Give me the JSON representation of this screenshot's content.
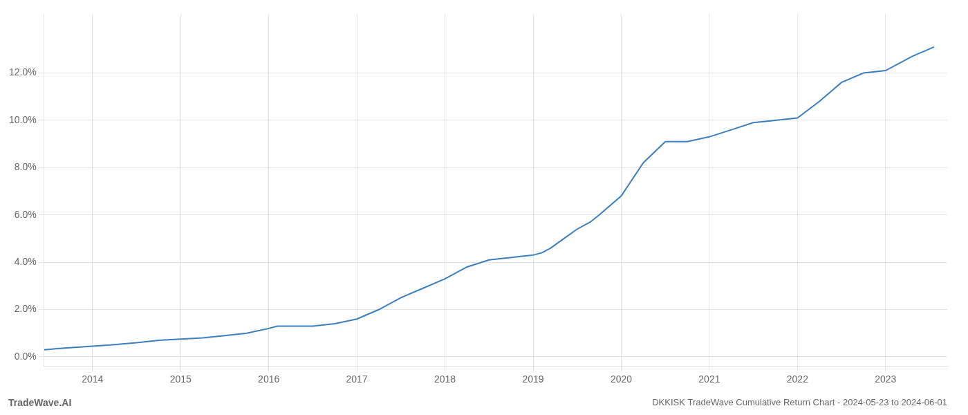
{
  "chart_data": {
    "type": "line",
    "title": "DKKISK TradeWave Cumulative Return Chart - 2024-05-23 to 2024-06-01",
    "annotations": [
      "TradeWave.AI"
    ],
    "color": "#3a7ebf",
    "x": [
      2013.45,
      2013.6,
      2013.8,
      2014.0,
      2014.2,
      2014.5,
      2014.75,
      2015.0,
      2015.25,
      2015.5,
      2015.75,
      2016.0,
      2016.1,
      2016.25,
      2016.5,
      2016.75,
      2017.0,
      2017.25,
      2017.5,
      2017.75,
      2018.0,
      2018.25,
      2018.5,
      2018.75,
      2019.0,
      2019.1,
      2019.2,
      2019.35,
      2019.5,
      2019.65,
      2019.75,
      2020.0,
      2020.25,
      2020.5,
      2020.75,
      2021.0,
      2021.25,
      2021.5,
      2021.75,
      2022.0,
      2022.25,
      2022.5,
      2022.75,
      2023.0,
      2023.3,
      2023.55
    ],
    "values": [
      0.003,
      0.0035,
      0.004,
      0.0045,
      0.005,
      0.006,
      0.007,
      0.0075,
      0.008,
      0.009,
      0.01,
      0.012,
      0.013,
      0.013,
      0.013,
      0.014,
      0.016,
      0.02,
      0.025,
      0.029,
      0.033,
      0.038,
      0.041,
      0.042,
      0.043,
      0.044,
      0.046,
      0.05,
      0.054,
      0.057,
      0.06,
      0.068,
      0.082,
      0.091,
      0.091,
      0.093,
      0.096,
      0.099,
      0.1,
      0.101,
      0.108,
      0.116,
      0.12,
      0.121,
      0.127,
      0.131
    ],
    "xlim": [
      2013.45,
      2023.7
    ],
    "ylim": [
      -0.004,
      0.145
    ],
    "xticks": [
      2014,
      2015,
      2016,
      2017,
      2018,
      2019,
      2020,
      2021,
      2022,
      2023
    ],
    "yticks": [
      {
        "value": 0.0,
        "label": "0.0%"
      },
      {
        "value": 0.02,
        "label": "2.0%"
      },
      {
        "value": 0.04,
        "label": "4.0%"
      },
      {
        "value": 0.06,
        "label": "6.0%"
      },
      {
        "value": 0.08,
        "label": "8.0%"
      },
      {
        "value": 0.1,
        "label": "10.0%"
      },
      {
        "value": 0.12,
        "label": "12.0%"
      }
    ],
    "grid": true
  }
}
